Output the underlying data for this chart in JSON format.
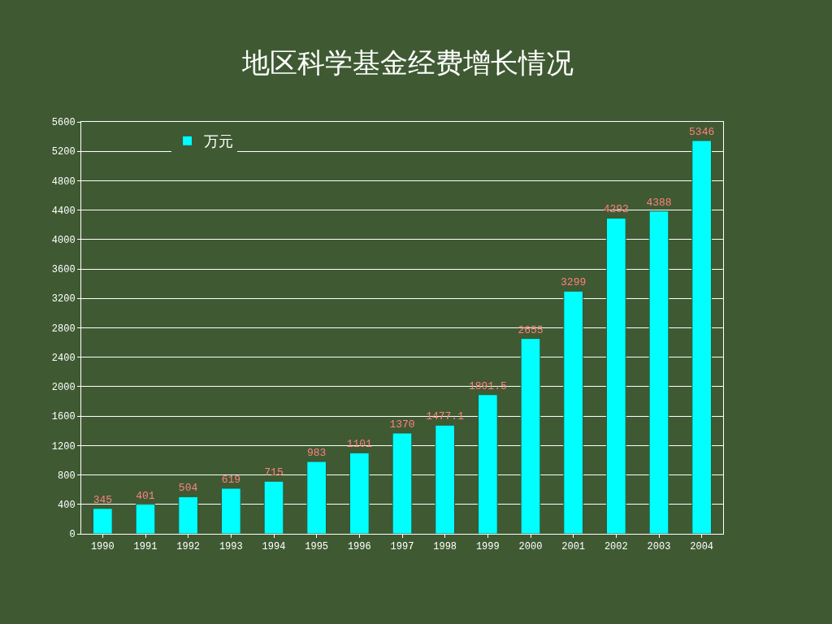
{
  "chart_data": {
    "type": "bar",
    "title": "地区科学基金经费增长情况",
    "categories": [
      "1990",
      "1991",
      "1992",
      "1993",
      "1994",
      "1995",
      "1996",
      "1997",
      "1998",
      "1999",
      "2000",
      "2001",
      "2002",
      "2003",
      "2004"
    ],
    "series": [
      {
        "name": "万元",
        "color": "#00ffff",
        "values": [
          345,
          401,
          504,
          619,
          715,
          983,
          1101,
          1370,
          1477.1,
          1891.5,
          2655,
          3299,
          4292,
          4388,
          5346
        ]
      }
    ],
    "ylim": [
      0,
      5600
    ],
    "yticks": [
      0,
      400,
      800,
      1200,
      1600,
      2000,
      2400,
      2800,
      3200,
      3600,
      4000,
      4400,
      4800,
      5200,
      5600
    ],
    "grid": "y",
    "legend": "top left",
    "data_labels": true
  }
}
